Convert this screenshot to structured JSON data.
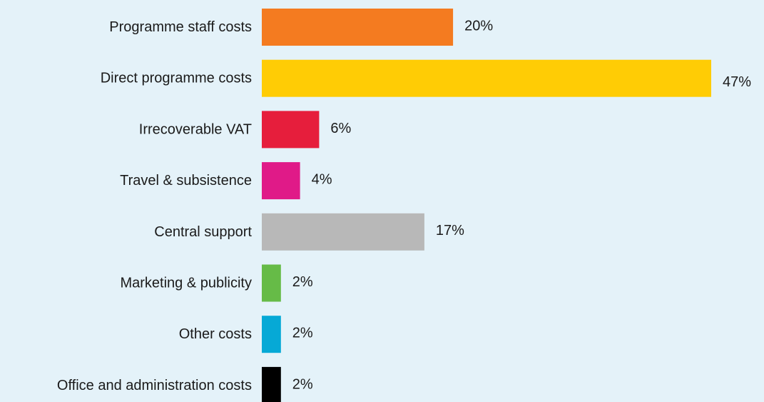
{
  "chart_data": {
    "type": "bar",
    "orientation": "horizontal",
    "title": "",
    "xlabel": "",
    "ylabel": "",
    "grid": false,
    "legend": "none",
    "unit": "%",
    "xlim": [
      0,
      47
    ],
    "categories": [
      "Programme staff costs",
      "Direct programme costs",
      "Irrecoverable VAT",
      "Travel & subsistence",
      "Central support",
      "Marketing & publicity",
      "Other costs",
      "Office and administration  costs"
    ],
    "values": [
      20,
      47,
      6,
      4,
      17,
      2,
      2,
      2
    ],
    "value_labels": [
      "20%",
      "47%",
      "6%",
      "4%",
      "17%",
      "2%",
      "2%",
      "2%"
    ],
    "colors": [
      "#f47b20",
      "#ffcc05",
      "#e61e3c",
      "#e01a88",
      "#b8b8b8",
      "#66bb47",
      "#06a9d6",
      "#000000"
    ]
  },
  "background_color": "#e4f2f9",
  "text_color": "#1a1a1a"
}
